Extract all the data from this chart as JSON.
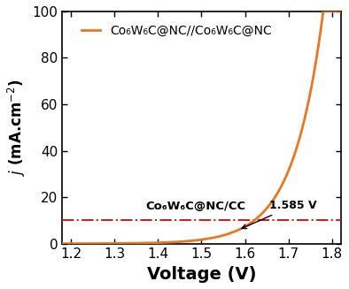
{
  "title": "",
  "xlabel": "Voltage (V)",
  "ylabel": "j (mA.cm⁻²)",
  "xlim": [
    1.18,
    1.82
  ],
  "ylim": [
    0,
    100
  ],
  "xticks": [
    1.2,
    1.3,
    1.4,
    1.5,
    1.6,
    1.7,
    1.8
  ],
  "yticks": [
    0,
    20,
    40,
    60,
    80,
    100
  ],
  "curve_color": "#E87722",
  "hline_value": 10,
  "hline_color": "#cc2222",
  "hline_style": "-.",
  "annotation_voltage": 1.585,
  "annotation_text": "1.585 V",
  "legend_label": "Co₆W₆C@NC//Co₆W₆C@NC",
  "label2": "Co₆W₆C@NC/CC",
  "background_color": "#ffffff",
  "xlabel_fontsize": 14,
  "ylabel_fontsize": 12,
  "tick_fontsize": 11,
  "legend_fontsize": 10
}
